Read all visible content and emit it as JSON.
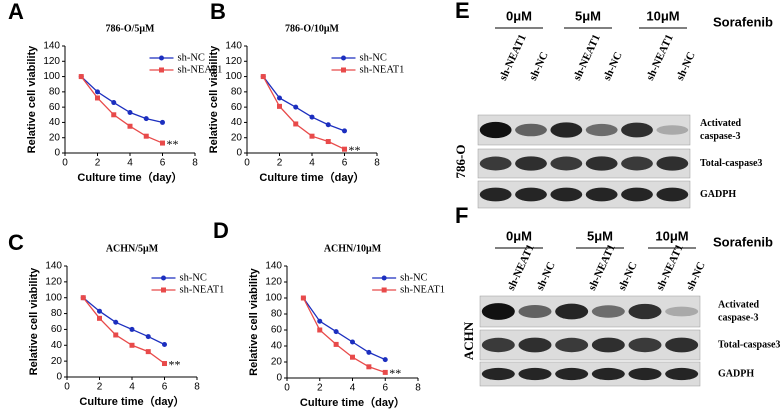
{
  "chart_data": [
    {
      "type": "line",
      "panel": "A",
      "title": "786-O/5μM",
      "ylabel": "Relative cell viability",
      "xlabel": "Culture time（day）",
      "x": [
        1,
        2,
        3,
        4,
        5,
        6
      ],
      "xlim": [
        0,
        8
      ],
      "xticks": [
        0,
        2,
        4,
        6,
        8
      ],
      "ylim": [
        0,
        140
      ],
      "yticks": [
        0,
        20,
        40,
        60,
        80,
        100,
        120,
        140
      ],
      "legend": "upper right",
      "annotation": "**",
      "series": [
        {
          "name": "sh-NC",
          "color": "#1c2fbf",
          "values": [
            100,
            80,
            66,
            53,
            45,
            40
          ]
        },
        {
          "name": "sh-NEAT1",
          "color": "#e84a4a",
          "values": [
            100,
            72,
            50,
            35,
            22,
            13
          ]
        }
      ]
    },
    {
      "type": "line",
      "panel": "B",
      "title": "786-O/10μM",
      "ylabel": "Relative cell viability",
      "xlabel": "Culture time（day）",
      "x": [
        1,
        2,
        3,
        4,
        5,
        6
      ],
      "xlim": [
        0,
        8
      ],
      "xticks": [
        0,
        2,
        4,
        6,
        8
      ],
      "ylim": [
        0,
        140
      ],
      "yticks": [
        0,
        20,
        40,
        60,
        80,
        100,
        120,
        140
      ],
      "legend": "upper right",
      "annotation": "**",
      "series": [
        {
          "name": "sh-NC",
          "color": "#1c2fbf",
          "values": [
            100,
            72,
            60,
            47,
            37,
            29
          ]
        },
        {
          "name": "sh-NEAT1",
          "color": "#e84a4a",
          "values": [
            100,
            61,
            38,
            22,
            15,
            5
          ]
        }
      ]
    },
    {
      "type": "line",
      "panel": "C",
      "title": "ACHN/5μM",
      "ylabel": "Relative cell viability",
      "xlabel": "Culture time（day）",
      "x": [
        1,
        2,
        3,
        4,
        5,
        6
      ],
      "xlim": [
        0,
        8
      ],
      "xticks": [
        0,
        2,
        4,
        6,
        8
      ],
      "ylim": [
        0,
        140
      ],
      "yticks": [
        0,
        20,
        40,
        60,
        80,
        100,
        120,
        140
      ],
      "legend": "upper right",
      "annotation": "**",
      "series": [
        {
          "name": "sh-NC",
          "color": "#1c2fbf",
          "values": [
            100,
            83,
            69,
            60,
            51,
            41
          ]
        },
        {
          "name": "sh-NEAT1",
          "color": "#e84a4a",
          "values": [
            100,
            74,
            53,
            40,
            32,
            17
          ]
        }
      ]
    },
    {
      "type": "line",
      "panel": "D",
      "title": "ACHN/10μM",
      "ylabel": "Relative cell viability",
      "xlabel": "Culture time（day）",
      "x": [
        1,
        2,
        3,
        4,
        5,
        6
      ],
      "xlim": [
        0,
        8
      ],
      "xticks": [
        0,
        2,
        4,
        6,
        8
      ],
      "ylim": [
        0,
        140
      ],
      "yticks": [
        0,
        20,
        40,
        60,
        80,
        100,
        120,
        140
      ],
      "legend": "upper right",
      "annotation": "**",
      "series": [
        {
          "name": "sh-NC",
          "color": "#1c2fbf",
          "values": [
            100,
            71,
            58,
            45,
            32,
            23
          ]
        },
        {
          "name": "sh-NEAT1",
          "color": "#e84a4a",
          "values": [
            100,
            60,
            42,
            26,
            14,
            7
          ]
        }
      ]
    }
  ],
  "blots": [
    {
      "panel": "E",
      "cell_line": "786-O",
      "treatment": "Sorafenib",
      "doses": [
        "0μM",
        "5μM",
        "10μM"
      ],
      "lanes": [
        "sh-NEAT1",
        "sh-NC",
        "sh-NEAT1",
        "sh-NC",
        "sh-NEAT1",
        "sh-NC"
      ],
      "rows": [
        [
          "Activated",
          "caspase-3"
        ],
        [
          "Total-caspase3"
        ],
        [
          "GADPH"
        ]
      ]
    },
    {
      "panel": "F",
      "cell_line": "ACHN",
      "treatment": "Sorafenib",
      "doses": [
        "0μM",
        "5μM",
        "10μM"
      ],
      "lanes": [
        "sh-NEAT1",
        "sh-NC",
        "sh-NEAT1",
        "sh-NC",
        "sh-NEAT1",
        "sh-NC"
      ],
      "rows": [
        [
          "Activated",
          "caspase-3"
        ],
        [
          "Total-caspase3"
        ],
        [
          "GADPH"
        ]
      ]
    }
  ]
}
